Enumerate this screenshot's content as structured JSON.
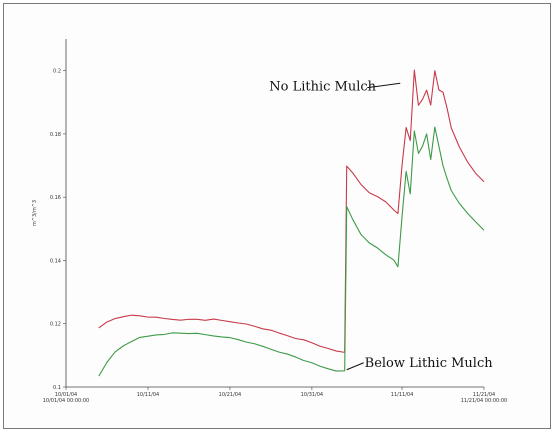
{
  "chart_data": {
    "type": "line",
    "ylabel": "m^3/m^3",
    "ylim": [
      0.1,
      0.21
    ],
    "xlim": [
      "2004-10-01",
      "2004-11-21"
    ],
    "grid": false,
    "yticks": [
      {
        "value": 0.1,
        "label": "0.1"
      },
      {
        "value": 0.12,
        "label": "0.12"
      },
      {
        "value": 0.14,
        "label": "0.14"
      },
      {
        "value": 0.16,
        "label": "0.16"
      },
      {
        "value": 0.18,
        "label": "0.18"
      },
      {
        "value": 0.2,
        "label": "0.2"
      }
    ],
    "xticks": [
      {
        "value": "2004-10-01",
        "label": "10/01/04",
        "label2": "10/01/04 00:00:00"
      },
      {
        "value": "2004-10-11",
        "label": "10/11/04"
      },
      {
        "value": "2004-10-21",
        "label": "10/21/04"
      },
      {
        "value": "2004-10-31",
        "label": "10/31/04"
      },
      {
        "value": "2004-11-11",
        "label": "11/11/04"
      },
      {
        "value": "2004-11-21",
        "label": "11/21/04",
        "label2": "11/21/04 00:00:00"
      }
    ],
    "series": [
      {
        "color": "#c83a4a",
        "points": [
          [
            "2004-10-05",
            0.1185
          ],
          [
            "2004-10-06",
            0.1205
          ],
          [
            "2004-10-07",
            0.1217
          ],
          [
            "2004-10-08",
            0.1224
          ],
          [
            "2004-10-09",
            0.1226
          ],
          [
            "2004-10-10",
            0.1225
          ],
          [
            "2004-10-11",
            0.1222
          ],
          [
            "2004-10-12",
            0.1219
          ],
          [
            "2004-10-13",
            0.1216
          ],
          [
            "2004-10-14",
            0.1214
          ],
          [
            "2004-10-15",
            0.1213
          ],
          [
            "2004-10-16",
            0.1213
          ],
          [
            "2004-10-17",
            0.1214
          ],
          [
            "2004-10-18",
            0.1212
          ],
          [
            "2004-10-19",
            0.1213
          ],
          [
            "2004-10-20",
            0.121
          ],
          [
            "2004-10-21",
            0.1207
          ],
          [
            "2004-10-22",
            0.1204
          ],
          [
            "2004-10-23",
            0.1198
          ],
          [
            "2004-10-24",
            0.1192
          ],
          [
            "2004-10-25",
            0.1185
          ],
          [
            "2004-10-26",
            0.1178
          ],
          [
            "2004-10-27",
            0.117
          ],
          [
            "2004-10-28",
            0.1163
          ],
          [
            "2004-10-29",
            0.1155
          ],
          [
            "2004-10-30",
            0.1148
          ],
          [
            "2004-10-31",
            0.114
          ],
          [
            "2004-11-01",
            0.113
          ],
          [
            "2004-11-02",
            0.112
          ],
          [
            "2004-11-03",
            0.1113
          ],
          [
            "2004-11-04",
            0.111
          ],
          [
            "2004-11-04T06",
            0.17
          ],
          [
            "2004-11-05",
            0.1675
          ],
          [
            "2004-11-06",
            0.164
          ],
          [
            "2004-11-07",
            0.1615
          ],
          [
            "2004-11-08",
            0.16
          ],
          [
            "2004-11-09",
            0.1585
          ],
          [
            "2004-11-10",
            0.156
          ],
          [
            "2004-11-10T12",
            0.155
          ],
          [
            "2004-11-11",
            0.17
          ],
          [
            "2004-11-11T12",
            0.182
          ],
          [
            "2004-11-12",
            0.178
          ],
          [
            "2004-11-12T12",
            0.2
          ],
          [
            "2004-11-13",
            0.189
          ],
          [
            "2004-11-13T12",
            0.191
          ],
          [
            "2004-11-14",
            0.194
          ],
          [
            "2004-11-14T12",
            0.189
          ],
          [
            "2004-11-15",
            0.2
          ],
          [
            "2004-11-15T12",
            0.194
          ],
          [
            "2004-11-16",
            0.193
          ],
          [
            "2004-11-16T12",
            0.188
          ],
          [
            "2004-11-17",
            0.182
          ],
          [
            "2004-11-18",
            0.176
          ],
          [
            "2004-11-19",
            0.171
          ],
          [
            "2004-11-20",
            0.1675
          ],
          [
            "2004-11-21",
            0.165
          ]
        ]
      },
      {
        "color": "#3e9a47",
        "points": [
          [
            "2004-10-05",
            0.1035
          ],
          [
            "2004-10-06",
            0.108
          ],
          [
            "2004-10-07",
            0.111
          ],
          [
            "2004-10-08",
            0.113
          ],
          [
            "2004-10-09",
            0.1145
          ],
          [
            "2004-10-10",
            0.1155
          ],
          [
            "2004-10-11",
            0.116
          ],
          [
            "2004-10-12",
            0.1165
          ],
          [
            "2004-10-13",
            0.1168
          ],
          [
            "2004-10-14",
            0.117
          ],
          [
            "2004-10-15",
            0.117
          ],
          [
            "2004-10-16",
            0.117
          ],
          [
            "2004-10-17",
            0.1168
          ],
          [
            "2004-10-18",
            0.1165
          ],
          [
            "2004-10-19",
            0.1162
          ],
          [
            "2004-10-20",
            0.116
          ],
          [
            "2004-10-21",
            0.1155
          ],
          [
            "2004-10-22",
            0.115
          ],
          [
            "2004-10-23",
            0.1143
          ],
          [
            "2004-10-24",
            0.1135
          ],
          [
            "2004-10-25",
            0.1128
          ],
          [
            "2004-10-26",
            0.112
          ],
          [
            "2004-10-27",
            0.1112
          ],
          [
            "2004-10-28",
            0.1103
          ],
          [
            "2004-10-29",
            0.1095
          ],
          [
            "2004-10-30",
            0.1085
          ],
          [
            "2004-10-31",
            0.1075
          ],
          [
            "2004-11-01",
            0.1065
          ],
          [
            "2004-11-02",
            0.1058
          ],
          [
            "2004-11-03",
            0.1052
          ],
          [
            "2004-11-04",
            0.105
          ],
          [
            "2004-11-04T06",
            0.157
          ],
          [
            "2004-11-05",
            0.153
          ],
          [
            "2004-11-06",
            0.148
          ],
          [
            "2004-11-07",
            0.1455
          ],
          [
            "2004-11-08",
            0.144
          ],
          [
            "2004-11-09",
            0.142
          ],
          [
            "2004-11-10",
            0.14
          ],
          [
            "2004-11-10T12",
            0.138
          ],
          [
            "2004-11-11",
            0.154
          ],
          [
            "2004-11-11T12",
            0.168
          ],
          [
            "2004-11-12",
            0.161
          ],
          [
            "2004-11-12T12",
            0.181
          ],
          [
            "2004-11-13",
            0.174
          ],
          [
            "2004-11-13T12",
            0.176
          ],
          [
            "2004-11-14",
            0.18
          ],
          [
            "2004-11-14T12",
            0.172
          ],
          [
            "2004-11-15",
            0.182
          ],
          [
            "2004-11-15T12",
            0.176
          ],
          [
            "2004-11-16",
            0.17
          ],
          [
            "2004-11-16T12",
            0.166
          ],
          [
            "2004-11-17",
            0.162
          ],
          [
            "2004-11-18",
            0.158
          ],
          [
            "2004-11-19",
            0.155
          ],
          [
            "2004-11-20",
            0.152
          ],
          [
            "2004-11-21",
            0.1495
          ]
        ]
      }
    ],
    "annotations": [
      {
        "text": "No Lithic Mulch",
        "x": "2004-11-12",
        "y": 0.196
      },
      {
        "text": "Below Lithic Mulch",
        "x": "2004-11-04",
        "y": 0.1045
      }
    ]
  }
}
